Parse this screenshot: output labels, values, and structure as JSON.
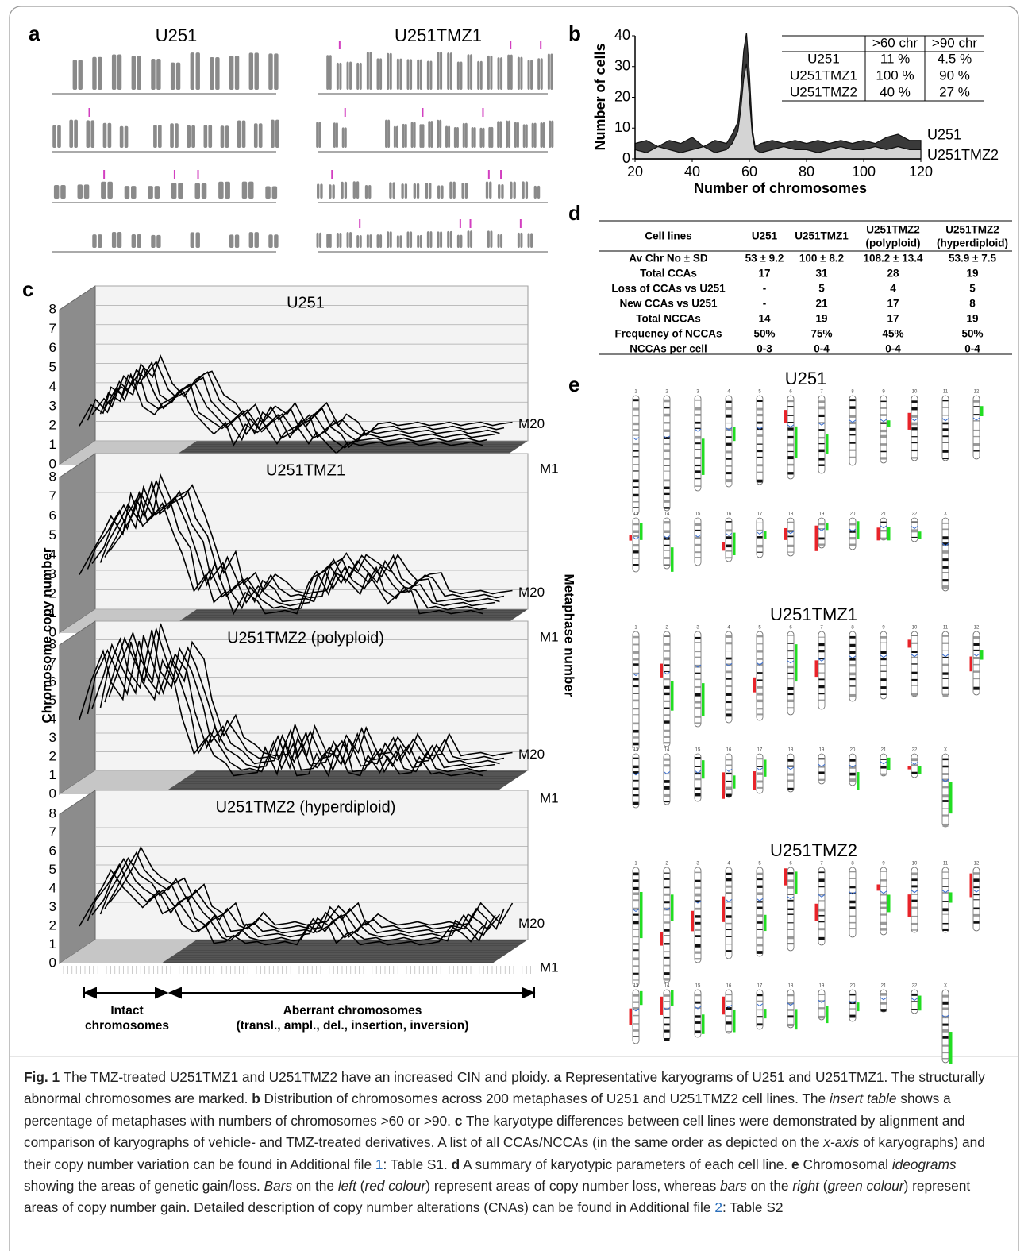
{
  "panels": {
    "a": {
      "label": "a",
      "titles": [
        "U251",
        "U251TMZ1"
      ]
    },
    "b": {
      "label": "b",
      "table": {
        "header": [
          "",
          ">60 chr",
          ">90 chr"
        ],
        "rows": [
          [
            "U251",
            "11 %",
            "4.5 %"
          ],
          [
            "U251TMZ1",
            "100 %",
            "90 %"
          ],
          [
            "U251TMZ2",
            "40 %",
            "27 %"
          ]
        ]
      }
    },
    "c": {
      "label": "c",
      "ylabel": "Chromosome copy number",
      "zlabel": "Metaphase number",
      "group_labels": [
        "Intact",
        "chromosomes",
        "Aberrant chromosomes",
        "(transl., ampl., del., insertion, inversion)"
      ]
    },
    "d": {
      "label": "d",
      "header": [
        "Cell lines",
        "U251",
        "U251TMZ1",
        "U251TMZ2",
        "(polyploid)",
        "U251TMZ2",
        "(hyperdiploid)"
      ],
      "rows": [
        [
          "Av Chr No ± SD",
          "53 ± 9.2",
          "100 ±  8.2",
          "108.2 ± 13.4",
          "53.9 ± 7.5"
        ],
        [
          "Total CCAs",
          "17",
          "31",
          "28",
          "19"
        ],
        [
          "Loss of CCAs vs U251",
          "-",
          "5",
          "4",
          "5"
        ],
        [
          "New CCAs vs U251",
          "-",
          "21",
          "17",
          "8"
        ],
        [
          "Total NCCAs",
          "14",
          "19",
          "17",
          "19"
        ],
        [
          "Frequency of NCCAs",
          "50%",
          "75%",
          "45%",
          "50%"
        ],
        [
          "NCCAs per cell",
          "0-3",
          "0-4",
          "0-4",
          "0-4"
        ]
      ]
    },
    "e": {
      "label": "e",
      "titles": [
        "U251",
        "U251TMZ1",
        "U251TMZ2"
      ],
      "chromosomes": [
        "1",
        "2",
        "3",
        "4",
        "5",
        "6",
        "7",
        "8",
        "9",
        "10",
        "11",
        "12",
        "13",
        "14",
        "15",
        "16",
        "17",
        "18",
        "19",
        "20",
        "21",
        "22",
        "X"
      ]
    }
  },
  "chart_data": [
    {
      "type": "area",
      "ylabel": "Number of cells",
      "xlabel": "Number of chromosomes",
      "x": [
        20,
        24,
        28,
        32,
        36,
        40,
        44,
        48,
        52,
        54,
        56,
        57,
        58,
        59,
        60,
        61,
        62,
        64,
        68,
        72,
        76,
        80,
        84,
        88,
        92,
        96,
        100,
        104,
        108,
        112,
        116,
        120
      ],
      "series": [
        {
          "name": "U251",
          "color": "#3a3a3a",
          "values": [
            5,
            6,
            4,
            6,
            5,
            7,
            4,
            6,
            5,
            8,
            12,
            22,
            35,
            41,
            28,
            10,
            4,
            5,
            6,
            5,
            6,
            5,
            6,
            5,
            6,
            5,
            6,
            5,
            7,
            8,
            6,
            6
          ]
        },
        {
          "name": "U251TMZ2",
          "color": "#d4d4d4",
          "values": [
            3,
            2,
            4,
            3,
            2,
            3,
            4,
            2,
            3,
            5,
            9,
            16,
            26,
            31,
            20,
            8,
            3,
            2,
            3,
            4,
            3,
            3,
            2,
            3,
            4,
            3,
            3,
            4,
            3,
            4,
            3,
            3
          ]
        }
      ],
      "xlim": [
        20,
        120
      ],
      "ylim": [
        0,
        40
      ],
      "xticks": [
        20,
        40,
        60,
        80,
        100,
        120
      ],
      "yticks": [
        0,
        10,
        20,
        30,
        40
      ]
    },
    {
      "type": "line3d",
      "title": "U251",
      "ylim": [
        0,
        8
      ],
      "yticks": [
        0,
        1,
        2,
        3,
        4,
        5,
        6,
        7,
        8
      ],
      "depth_labels": [
        "M20",
        "M1"
      ],
      "values": [
        2,
        3,
        2.5,
        4,
        3.5,
        4.5,
        3,
        2.5,
        3,
        3.5,
        3.8,
        2.5,
        2,
        1.5,
        2,
        1,
        2,
        1.5,
        2,
        1,
        1.5,
        2,
        1,
        1.5,
        1,
        0.5,
        1,
        1,
        1,
        1,
        1,
        1,
        1,
        1,
        1,
        1,
        1,
        1,
        1,
        1
      ]
    },
    {
      "type": "line3d",
      "title": "U251TMZ1",
      "ylim": [
        0,
        8
      ],
      "yticks": [
        0,
        1,
        2,
        3,
        4,
        5,
        6,
        7,
        8
      ],
      "depth_labels": [
        "M20",
        "M1"
      ],
      "values": [
        3,
        4,
        5,
        6,
        5,
        7,
        5.5,
        6,
        6.5,
        5,
        4,
        2,
        3,
        1.5,
        2,
        1,
        2,
        1.5,
        1,
        1,
        1,
        1,
        2.5,
        3,
        2,
        3,
        2.5,
        2,
        3,
        2,
        1.5,
        2,
        2,
        1,
        1,
        1,
        1,
        1,
        1,
        1
      ]
    },
    {
      "type": "line3d",
      "title": "U251TMZ2 (polyploid)",
      "ylim": [
        0,
        8
      ],
      "yticks": [
        0,
        1,
        2,
        3,
        4,
        5,
        6,
        7,
        8
      ],
      "depth_labels": [
        "M20",
        "M1"
      ],
      "values": [
        4,
        6,
        7.5,
        6,
        5,
        8,
        6,
        5,
        7,
        6,
        4,
        2,
        3,
        2,
        1.5,
        1,
        1,
        1,
        2.5,
        1,
        2.5,
        1,
        1,
        2,
        1,
        2.5,
        1,
        1,
        2,
        1,
        2,
        1,
        1,
        2,
        1,
        1,
        1,
        1,
        1,
        1
      ]
    },
    {
      "type": "line3d",
      "title": "U251TMZ2 (hyperdiploid)",
      "ylim": [
        0,
        8
      ],
      "yticks": [
        0,
        1,
        2,
        3,
        4,
        5,
        6,
        7,
        8
      ],
      "depth_labels": [
        "M20",
        "M1"
      ],
      "values": [
        2,
        3,
        4,
        5,
        4,
        3.5,
        3,
        3.5,
        2.5,
        3,
        2,
        1.5,
        2,
        1,
        1,
        1.5,
        1,
        1,
        1,
        1,
        1,
        1,
        2,
        1.5,
        2,
        1,
        1.5,
        1,
        1,
        1,
        1,
        1,
        1,
        1,
        1,
        1,
        2,
        1.5,
        1,
        2
      ]
    }
  ],
  "caption": [
    "Fig. 1",
    " The TMZ-treated U251TMZ1 and U251TMZ2 have an increased CIN and ploidy. ",
    "a",
    " Representative karyograms of U251 and U251TMZ1. The structurally abnormal chromosomes are marked. ",
    "b",
    " Distribution of chromosomes across 200 metaphases of U251 and U251TMZ2 cell lines. The ",
    "insert table",
    " shows a percentage of metaphases with numbers of chromosomes >60 or >90. ",
    "c",
    " The karyotype differences between cell lines were demonstrated by alignment and comparison of karyographs of vehicle- and TMZ-treated derivatives. A list of all CCAs/NCCAs (in the same order as depicted on the ",
    "x-axis",
    " of karyographs) and their copy number variation can be found in Additional file ",
    "1",
    ": Table S1. ",
    "d",
    " A summary of karyotypic parameters of each cell line. ",
    "e",
    " Chromosomal ",
    "ideograms",
    " showing the areas of genetic gain/loss. ",
    "Bars",
    " on the ",
    "left",
    " (",
    "red colour",
    ") represent areas of copy number loss, whereas ",
    "bars",
    " on the ",
    "right",
    " (",
    "green colour",
    ") represent areas of copy number gain. Detailed description of copy number alterations (CNAs) can be found in Additional file ",
    "2",
    ": Table S2"
  ]
}
